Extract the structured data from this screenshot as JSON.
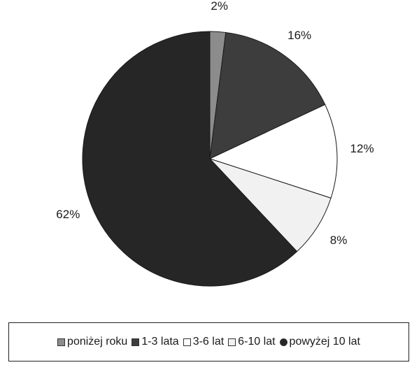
{
  "chart_data": {
    "type": "pie",
    "categories": [
      "poniżej roku",
      "1-3 lata",
      "3-6 lat",
      "6-10 lat",
      "powyżej 10 lat"
    ],
    "values": [
      2,
      16,
      12,
      8,
      62
    ],
    "value_labels": [
      "2%",
      "16%",
      "12%",
      "8%",
      "62%"
    ],
    "colors": [
      "#8c8c8c",
      "#3d3d3d",
      "#ffffff",
      "#f1f1f1",
      "#262626"
    ],
    "start_angle": "12 o'clock",
    "direction": "clockwise",
    "legend_placement": "bottom"
  }
}
